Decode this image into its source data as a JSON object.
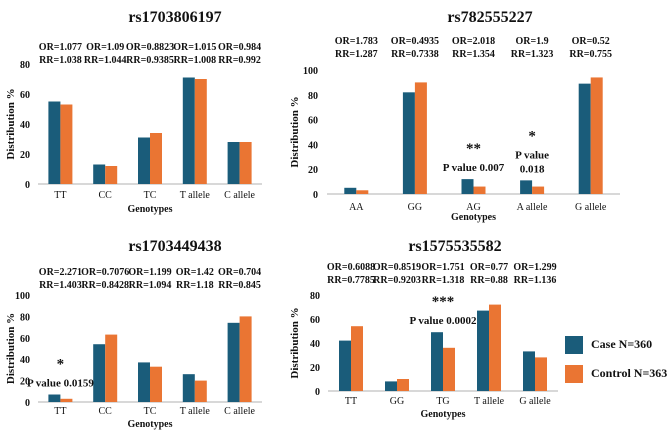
{
  "colors": {
    "case": "#1a5c7a",
    "control": "#ea7533",
    "axis": "#b0b0b0",
    "text": "#111111"
  },
  "legend": {
    "case_label": "Case N=360",
    "control_label": "Control  N=363"
  },
  "chart_data": [
    {
      "type": "bar",
      "title": "rs1703806197",
      "xlabel": "Genotypes",
      "ylabel": "Distribution %",
      "ylim": [
        0,
        80
      ],
      "yticks": [
        0,
        20,
        40,
        60,
        80
      ],
      "categories": [
        "TT",
        "CC",
        "TC",
        "T allele",
        "C allele"
      ],
      "series": [
        {
          "name": "Case N=360",
          "values": [
            55,
            13,
            31,
            71,
            28
          ]
        },
        {
          "name": "Control N=363",
          "values": [
            53,
            12,
            34,
            70,
            28
          ]
        }
      ],
      "stats": [
        {
          "or": "OR=1.077",
          "rr": "RR=1.038"
        },
        {
          "or": "OR=1.09",
          "rr": "RR=1.044"
        },
        {
          "or": "OR=0.8823",
          "rr": "RR=0.9385"
        },
        {
          "or": "OR=1.015",
          "rr": "RR=1.008"
        },
        {
          "or": "OR=0.984",
          "rr": "RR=0.992"
        }
      ],
      "annotations": []
    },
    {
      "type": "bar",
      "title": "rs782555227",
      "xlabel": "Genotypes",
      "ylabel": "Distribution %",
      "ylim": [
        0,
        100
      ],
      "yticks": [
        0,
        20,
        40,
        60,
        80,
        100
      ],
      "categories": [
        "AA",
        "GG",
        "AG",
        "A allele",
        "G allele"
      ],
      "series": [
        {
          "name": "Case N=360",
          "values": [
            5,
            82,
            12,
            11,
            89
          ]
        },
        {
          "name": "Control N=363",
          "values": [
            3,
            90,
            6,
            6,
            94
          ]
        }
      ],
      "stats": [
        {
          "or": "OR=1.783",
          "rr": "RR=1.287"
        },
        {
          "or": "OR=0.4935",
          "rr": "RR=0.7338"
        },
        {
          "or": "OR=2.018",
          "rr": "RR=1.354"
        },
        {
          "or": "OR=1.9",
          "rr": "RR=1.323"
        },
        {
          "or": "OR=0.52",
          "rr": "RR=0.755"
        }
      ],
      "annotations": [
        {
          "category": 2,
          "stars": "**",
          "lines": [
            "P value 0.007"
          ]
        },
        {
          "category": 3,
          "stars": "*",
          "lines": [
            "P value",
            "0.018"
          ]
        }
      ]
    },
    {
      "type": "bar",
      "title": "rs1703449438",
      "xlabel": "Genotypes",
      "ylabel": "Distribution %",
      "ylim": [
        0,
        100
      ],
      "yticks": [
        0,
        20,
        40,
        60,
        80,
        100
      ],
      "categories": [
        "TT",
        "CC",
        "TC",
        "T allele",
        "C allele"
      ],
      "series": [
        {
          "name": "Case N=360",
          "values": [
            7,
            54,
            37,
            26,
            74
          ]
        },
        {
          "name": "Control N=363",
          "values": [
            3,
            63,
            33,
            20,
            80
          ]
        }
      ],
      "stats": [
        {
          "or": "OR=2.271",
          "rr": "RR=1.403"
        },
        {
          "or": "OR=0.7076",
          "rr": "RR=0.8428"
        },
        {
          "or": "OR=1.199",
          "rr": "RR=1.094"
        },
        {
          "or": "OR=1.42",
          "rr": "RR=1.18"
        },
        {
          "or": "OR=0.704",
          "rr": "RR=0.845"
        }
      ],
      "annotations": [
        {
          "category": 0,
          "stars": "*",
          "lines": [
            "P value 0.0159"
          ]
        }
      ]
    },
    {
      "type": "bar",
      "title": "rs1575535582",
      "xlabel": "Genotypes",
      "ylabel": "Distribution %",
      "ylim": [
        0,
        80
      ],
      "yticks": [
        0,
        20,
        40,
        60,
        80
      ],
      "categories": [
        "TT",
        "GG",
        "TG",
        "T allele",
        "G allele"
      ],
      "series": [
        {
          "name": "Case N=360",
          "values": [
            42,
            8,
            49,
            67,
            33
          ]
        },
        {
          "name": "Control N=363",
          "values": [
            54,
            10,
            36,
            72,
            28
          ]
        }
      ],
      "stats": [
        {
          "or": "OR=0.6088",
          "rr": "RR=0.7785"
        },
        {
          "or": "OR=0.8519",
          "rr": "RR=0.9203"
        },
        {
          "or": "OR=1.751",
          "rr": "RR=1.318"
        },
        {
          "or": "OR=0.77",
          "rr": "RR=0.88"
        },
        {
          "or": "OR=1.299",
          "rr": "RR=1.136"
        }
      ],
      "annotations": [
        {
          "category": 2,
          "stars": "***",
          "lines": [
            "P value 0.0002"
          ]
        }
      ]
    }
  ]
}
